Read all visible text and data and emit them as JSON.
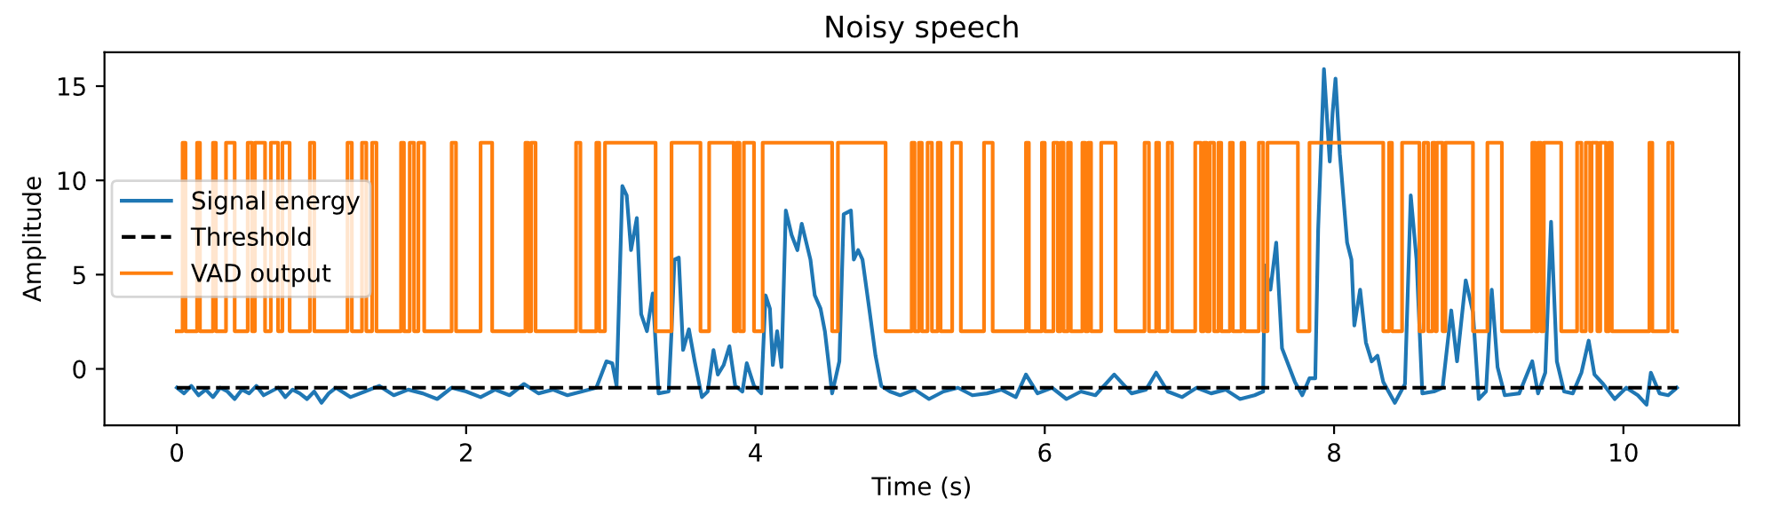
{
  "chart_data": {
    "type": "line",
    "title": "Noisy speech",
    "xlabel": "Time (s)",
    "ylabel": "Amplitude",
    "xlim": [
      -0.5,
      10.8
    ],
    "ylim": [
      -3.0,
      16.8
    ],
    "xticks": [
      0,
      2,
      4,
      6,
      8,
      10
    ],
    "yticks": [
      0,
      5,
      10,
      15
    ],
    "grid": false,
    "legend": "left",
    "series": [
      {
        "name": "Signal energy",
        "color": "#1f77b4",
        "line_style": "solid",
        "x": [
          0,
          0.05,
          0.1,
          0.15,
          0.2,
          0.25,
          0.3,
          0.35,
          0.4,
          0.45,
          0.5,
          0.55,
          0.6,
          0.65,
          0.7,
          0.75,
          0.8,
          0.85,
          0.9,
          0.95,
          1.0,
          1.05,
          1.1,
          1.2,
          1.3,
          1.4,
          1.5,
          1.6,
          1.7,
          1.8,
          1.9,
          2.0,
          2.1,
          2.2,
          2.3,
          2.4,
          2.5,
          2.6,
          2.7,
          2.8,
          2.9,
          2.97,
          3.01,
          3.04,
          3.08,
          3.11,
          3.14,
          3.18,
          3.21,
          3.25,
          3.29,
          3.33,
          3.4,
          3.42,
          3.44,
          3.47,
          3.5,
          3.54,
          3.58,
          3.63,
          3.67,
          3.71,
          3.74,
          3.78,
          3.82,
          3.86,
          3.91,
          3.94,
          3.99,
          4.04,
          4.07,
          4.1,
          4.12,
          4.15,
          4.18,
          4.21,
          4.25,
          4.29,
          4.32,
          4.38,
          4.41,
          4.45,
          4.48,
          4.53,
          4.58,
          4.61,
          4.66,
          4.68,
          4.71,
          4.74,
          4.79,
          4.83,
          4.87,
          4.93,
          5.0,
          5.1,
          5.2,
          5.3,
          5.4,
          5.5,
          5.6,
          5.7,
          5.8,
          5.87,
          5.95,
          6.05,
          6.15,
          6.25,
          6.35,
          6.48,
          6.6,
          6.7,
          6.77,
          6.85,
          6.95,
          7.05,
          7.15,
          7.25,
          7.35,
          7.45,
          7.51,
          7.52,
          7.56,
          7.6,
          7.64,
          7.69,
          7.73,
          7.78,
          7.83,
          7.87,
          7.89,
          7.93,
          7.97,
          7.99,
          8.01,
          8.04,
          8.09,
          8.12,
          8.14,
          8.18,
          8.22,
          8.26,
          8.3,
          8.34,
          8.42,
          8.49,
          8.53,
          8.57,
          8.61,
          8.69,
          8.75,
          8.81,
          8.85,
          8.91,
          8.96,
          9.0,
          9.05,
          9.09,
          9.13,
          9.18,
          9.28,
          9.37,
          9.41,
          9.46,
          9.5,
          9.54,
          9.59,
          9.65,
          9.71,
          9.76,
          9.8,
          9.86,
          9.94,
          10.02,
          10.1,
          10.16,
          10.19,
          10.25,
          10.31,
          10.37
        ],
        "values": [
          -1.0,
          -1.3,
          -0.9,
          -1.4,
          -1.1,
          -1.5,
          -1.0,
          -1.2,
          -1.6,
          -1.1,
          -1.3,
          -0.9,
          -1.4,
          -1.2,
          -1.0,
          -1.5,
          -1.1,
          -1.3,
          -1.6,
          -1.2,
          -1.8,
          -1.3,
          -1.0,
          -1.5,
          -1.2,
          -0.9,
          -1.4,
          -1.1,
          -1.3,
          -1.6,
          -1.0,
          -1.2,
          -1.5,
          -1.1,
          -1.4,
          -0.8,
          -1.3,
          -1.1,
          -1.4,
          -1.2,
          -1.0,
          0.4,
          0.3,
          -0.9,
          9.7,
          9.2,
          6.3,
          8.0,
          2.9,
          2.0,
          4.0,
          -1.3,
          -1.2,
          2.0,
          5.8,
          5.9,
          1.0,
          2.1,
          0.4,
          -1.5,
          -1.2,
          1.0,
          -0.3,
          0.2,
          1.2,
          -0.9,
          -1.2,
          0.3,
          -0.9,
          -1.3,
          3.9,
          3.2,
          0.2,
          2.0,
          0.1,
          8.4,
          7.1,
          6.3,
          7.7,
          5.8,
          3.9,
          3.2,
          2.0,
          -1.3,
          0.4,
          8.2,
          8.4,
          5.8,
          6.3,
          5.8,
          3.0,
          0.7,
          -0.9,
          -1.2,
          -1.4,
          -1.1,
          -1.6,
          -1.2,
          -1.0,
          -1.4,
          -1.3,
          -1.1,
          -1.5,
          -0.3,
          -1.3,
          -1.0,
          -1.6,
          -1.2,
          -1.4,
          -0.3,
          -1.3,
          -1.1,
          -0.2,
          -1.2,
          -1.5,
          -1.0,
          -1.3,
          -1.1,
          -1.6,
          -1.4,
          -1.2,
          5.5,
          4.2,
          6.7,
          1.1,
          0.1,
          -0.7,
          -1.4,
          -0.5,
          -0.5,
          7.4,
          15.9,
          11.0,
          13.6,
          15.4,
          11.4,
          6.7,
          5.8,
          2.3,
          4.2,
          1.4,
          0.4,
          0.7,
          -0.7,
          -1.8,
          -0.8,
          9.2,
          5.8,
          -1.3,
          -1.2,
          -1.0,
          3.1,
          0.4,
          4.7,
          3.0,
          -1.6,
          -1.2,
          4.2,
          0.1,
          -1.4,
          -1.3,
          0.4,
          -1.3,
          -0.2,
          7.8,
          0.4,
          -1.2,
          -1.3,
          -0.2,
          1.5,
          -0.3,
          -0.8,
          -1.6,
          -1.0,
          -1.4,
          -1.9,
          -0.2,
          -1.3,
          -1.4,
          -1.0
        ]
      },
      {
        "name": "Threshold",
        "color": "#000000",
        "line_style": "dashed",
        "x": [
          0,
          10.37
        ],
        "values": [
          -1,
          -1
        ]
      },
      {
        "name": "VAD output",
        "type": "step",
        "color": "#ff7f0e",
        "line_style": "solid",
        "x": [
          0,
          0.04,
          0.06,
          0.14,
          0.16,
          0.25,
          0.27,
          0.34,
          0.4,
          0.49,
          0.52,
          0.54,
          0.61,
          0.65,
          0.7,
          0.73,
          0.78,
          0.92,
          0.95,
          1.18,
          1.21,
          1.28,
          1.31,
          1.35,
          1.38,
          1.55,
          1.57,
          1.61,
          1.64,
          1.67,
          1.71,
          1.9,
          1.93,
          2.1,
          2.18,
          2.41,
          2.43,
          2.45,
          2.48,
          2.76,
          2.79,
          2.9,
          2.92,
          2.96,
          3.31,
          3.42,
          3.62,
          3.68,
          3.85,
          3.87,
          3.89,
          3.92,
          3.99,
          4.05,
          4.53,
          4.57,
          4.9,
          5.08,
          5.1,
          5.13,
          5.15,
          5.19,
          5.22,
          5.26,
          5.28,
          5.36,
          5.42,
          5.58,
          5.64,
          5.87,
          5.89,
          5.98,
          6.0,
          6.06,
          6.09,
          6.11,
          6.13,
          6.16,
          6.18,
          6.26,
          6.28,
          6.3,
          6.32,
          6.39,
          6.49,
          6.69,
          6.72,
          6.77,
          6.79,
          6.85,
          6.88,
          7.04,
          7.08,
          7.1,
          7.12,
          7.14,
          7.17,
          7.2,
          7.22,
          7.28,
          7.3,
          7.36,
          7.38,
          7.48,
          7.51,
          7.54,
          7.75,
          7.83,
          8.34,
          8.38,
          8.4,
          8.47,
          8.59,
          8.62,
          8.65,
          8.68,
          8.7,
          8.71,
          8.75,
          8.77,
          8.96,
          9.06,
          9.16,
          9.37,
          9.39,
          9.41,
          9.43,
          9.45,
          9.57,
          9.68,
          9.71,
          9.74,
          9.77,
          9.78,
          9.82,
          9.84,
          9.88,
          9.9,
          9.92,
          10.18,
          10.2,
          10.31,
          10.34,
          10.37
        ],
        "values": [
          2,
          12,
          2,
          12,
          2,
          12,
          2,
          12,
          2,
          12,
          2,
          12,
          2,
          12,
          2,
          12,
          2,
          12,
          2,
          12,
          2,
          12,
          2,
          12,
          2,
          12,
          2,
          12,
          2,
          12,
          2,
          12,
          2,
          12,
          2,
          12,
          2,
          12,
          2,
          12,
          2,
          12,
          2,
          12,
          2,
          12,
          2,
          12,
          2,
          12,
          2,
          12,
          2,
          12,
          2,
          12,
          2,
          12,
          2,
          12,
          2,
          12,
          2,
          12,
          2,
          12,
          2,
          12,
          2,
          12,
          2,
          12,
          2,
          12,
          2,
          12,
          2,
          12,
          2,
          12,
          2,
          12,
          2,
          12,
          2,
          12,
          2,
          12,
          2,
          12,
          2,
          12,
          2,
          12,
          2,
          12,
          2,
          12,
          2,
          12,
          2,
          12,
          2,
          12,
          2,
          12,
          2,
          12,
          2,
          12,
          2,
          12,
          2,
          12,
          2,
          12,
          2,
          12,
          2,
          12,
          2,
          12,
          2,
          12,
          2,
          12,
          2,
          12,
          2,
          12,
          2,
          12,
          2,
          12,
          2,
          12,
          2,
          12,
          2,
          12,
          2,
          12,
          2,
          2
        ]
      }
    ]
  }
}
